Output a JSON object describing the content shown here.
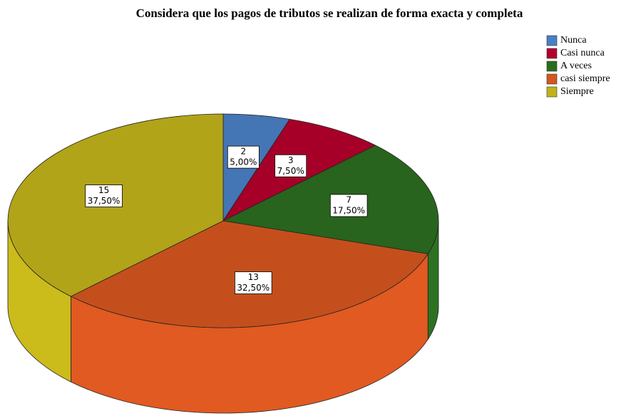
{
  "chart_data": {
    "type": "pie",
    "title": "Considera que los pagos de tributos se realizan de forma exacta y completa",
    "categories": [
      "Nunca",
      "Casi nunca",
      "A veces",
      "casi siempre",
      "Siempre"
    ],
    "values": [
      2,
      3,
      7,
      13,
      15
    ],
    "percentages": [
      5,
      7.5,
      17.5,
      32.5,
      37.5
    ],
    "percentage_labels": [
      "5,00%",
      "7,50%",
      "17,50%",
      "32,50%",
      "37,50%"
    ],
    "colors": [
      "#4a7fc4",
      "#b4002c",
      "#2b6d1f",
      "#d5561f",
      "#c1b21a"
    ],
    "legend": "top-right"
  }
}
